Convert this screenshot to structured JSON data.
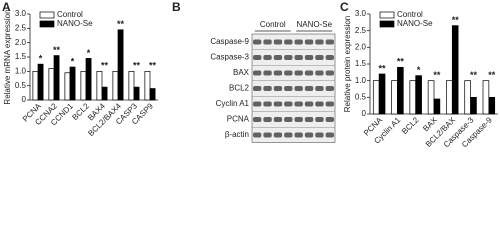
{
  "chart_data": [
    {
      "type": "bar",
      "panel_label": "A",
      "ylabel": "Relative mRNA expression",
      "categories": [
        "PCNA",
        "CCNA2",
        "CCND1",
        "BCL2",
        "BAX4",
        "BCL2/BAX4",
        "CASP3",
        "CASP9"
      ],
      "series": [
        {
          "name": "Control",
          "color": "#ffffff",
          "values": [
            1.0,
            1.1,
            0.95,
            1.0,
            1.0,
            1.0,
            1.0,
            1.0
          ]
        },
        {
          "name": "NANO-Se",
          "color": "#000000",
          "values": [
            1.25,
            1.55,
            1.15,
            1.45,
            0.45,
            2.45,
            0.45,
            0.4
          ]
        }
      ],
      "annotations": [
        "*",
        "**",
        "*",
        "*",
        "**",
        "**",
        "**",
        "**"
      ],
      "ylim": [
        0,
        3
      ],
      "yticks": [
        0,
        0.5,
        {
          "value": 1,
          "label": "1.0"
        },
        1.5,
        {
          "value": 2,
          "label": "2.0"
        },
        2.5,
        {
          "value": 3,
          "label": "3.0"
        }
      ],
      "legend": "upper left"
    },
    {
      "type": "bar",
      "panel_label": "C",
      "ylabel": "Relative protein expression",
      "categories": [
        "PCNA",
        "Cyclin A1",
        "BCL2",
        "BAX",
        "BCL2/BAX",
        "Caspase-3",
        "Caspase-9"
      ],
      "series": [
        {
          "name": "Control",
          "color": "#ffffff",
          "values": [
            1.0,
            1.0,
            1.0,
            1.0,
            1.0,
            1.0,
            1.0
          ]
        },
        {
          "name": "NANO-Se",
          "color": "#000000",
          "values": [
            1.2,
            1.4,
            1.15,
            0.45,
            2.65,
            0.5,
            0.5
          ]
        }
      ],
      "annotations": [
        "**",
        "**",
        "*",
        "**",
        "**",
        "**",
        "**"
      ],
      "ylim": [
        0,
        3
      ],
      "yticks": [
        0,
        0.5,
        {
          "value": 1,
          "label": "1.0"
        },
        1.5,
        {
          "value": 2,
          "label": "2.0"
        },
        2.5,
        {
          "value": 3,
          "label": "3.0"
        }
      ],
      "legend": "upper left"
    }
  ],
  "blot": {
    "panel_label": "B",
    "groups": [
      "Control",
      "NANO-Se"
    ],
    "rows": [
      "Caspase-9",
      "Caspase-3",
      "BAX",
      "BCL2",
      "Cyclin A1",
      "PCNA",
      "β-actin"
    ]
  }
}
